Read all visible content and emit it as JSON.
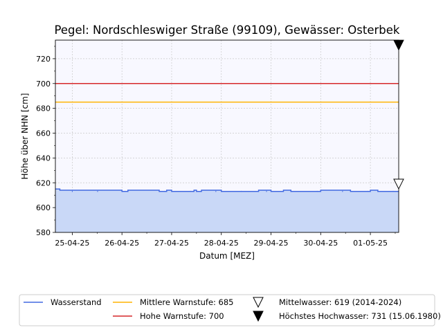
{
  "chart_data": {
    "type": "line",
    "title": "Pegel:  Nordschleswiger Straße (99109), Gewässer:  Osterbek",
    "xlabel": "Datum [MEZ]",
    "ylabel": "Höhe über NHN [cm]",
    "x_ticks": [
      "25-04-25",
      "26-04-25",
      "27-04-25",
      "28-04-25",
      "29-04-25",
      "30-04-25",
      "01-05-25"
    ],
    "y_ticks": [
      580,
      600,
      620,
      640,
      660,
      680,
      700,
      720
    ],
    "ylim": [
      580,
      735
    ],
    "xlim_days": [
      -0.34,
      6.57
    ],
    "grid": true,
    "legend_position": "bottom",
    "series": [
      {
        "name": "Wasserstand",
        "color": "#4169e1",
        "fill": "#c9d8f7",
        "x_days": [
          -0.34,
          -0.25,
          -0.25,
          1.0,
          1.0,
          1.12,
          1.12,
          1.25,
          1.25,
          1.75,
          1.75,
          1.9,
          1.9,
          2.0,
          2.0,
          2.45,
          2.45,
          2.5,
          2.5,
          2.6,
          2.6,
          3.0,
          3.0,
          3.75,
          3.75,
          4.0,
          4.0,
          4.25,
          4.25,
          4.4,
          4.4,
          5.0,
          5.0,
          5.6,
          5.6,
          6.0,
          6.0,
          6.15,
          6.15,
          6.57
        ],
        "y": [
          615,
          615,
          614,
          614,
          613,
          613,
          614,
          614,
          614,
          614,
          613,
          613,
          614,
          614,
          613,
          613,
          614,
          614,
          613,
          613,
          614,
          614,
          613,
          613,
          614,
          614,
          613,
          613,
          614,
          614,
          613,
          613,
          614,
          614,
          613,
          613,
          614,
          614,
          613,
          613
        ]
      }
    ],
    "thresholds": [
      {
        "name": "Mittlere Warnstufe: 685",
        "value": 685,
        "color": "#ffb300"
      },
      {
        "name": "Hohe Warnstufe: 700",
        "value": 700,
        "color": "#d62728"
      }
    ],
    "markers": [
      {
        "name": "Mittelwasser: 619 (2014-2024)",
        "value": 619,
        "symbol": "open-triangle-down"
      },
      {
        "name": "Höchstes Hochwasser: 731 (15.06.1980)",
        "value": 731,
        "symbol": "filled-triangle-down"
      }
    ]
  }
}
